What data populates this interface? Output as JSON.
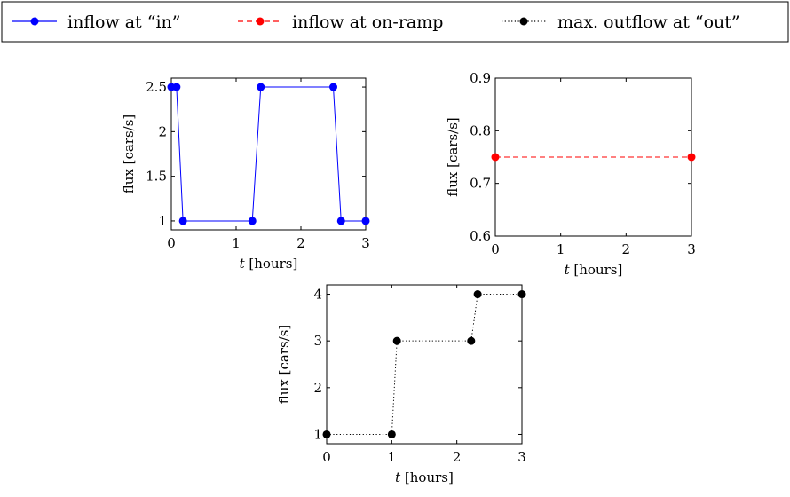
{
  "legend": {
    "placement": "top",
    "entries": [
      {
        "label": "inflow at “in”",
        "color": "#0000ff",
        "dash": "solid"
      },
      {
        "label": "inflow at on-ramp",
        "color": "#ff0000",
        "dash": "dashed"
      },
      {
        "label": "max. outflow at “out”",
        "color": "#000000",
        "dash": "dotted"
      }
    ]
  },
  "chart_data": [
    {
      "type": "line",
      "xlabel_var": "t",
      "xlabel_unit": "[hours]",
      "ylabel": "flux [cars/s]",
      "xlim": [
        0,
        3
      ],
      "ylim": [
        0.9,
        2.6
      ],
      "xticks": [
        0,
        1,
        2,
        3
      ],
      "yticks": [
        1,
        1.5,
        2,
        2.5
      ],
      "ytick_labels": [
        "1",
        "1.5",
        "2",
        "2.5"
      ],
      "grid": false,
      "series": [
        {
          "name": "inflow at “in”",
          "color": "#0000ff",
          "dash": "solid",
          "x": [
            0,
            0.08,
            0.18,
            1.25,
            1.38,
            2.5,
            2.62,
            3.0
          ],
          "y": [
            2.5,
            2.5,
            1.0,
            1.0,
            2.5,
            2.5,
            1.0,
            1.0
          ]
        }
      ]
    },
    {
      "type": "line",
      "xlabel_var": "t",
      "xlabel_unit": "[hours]",
      "ylabel": "flux [cars/s]",
      "xlim": [
        0,
        3
      ],
      "ylim": [
        0.6,
        0.9
      ],
      "xticks": [
        0,
        1,
        2,
        3
      ],
      "yticks": [
        0.6,
        0.7,
        0.8,
        0.9
      ],
      "ytick_labels": [
        "0.6",
        "0.7",
        "0.8",
        "0.9"
      ],
      "grid": false,
      "series": [
        {
          "name": "inflow at on-ramp",
          "color": "#ff0000",
          "dash": "dashed",
          "x": [
            0,
            3
          ],
          "y": [
            0.75,
            0.75
          ]
        }
      ]
    },
    {
      "type": "line",
      "xlabel_var": "t",
      "xlabel_unit": "[hours]",
      "ylabel": "flux [cars/s]",
      "xlim": [
        0,
        3
      ],
      "ylim": [
        0.8,
        4.2
      ],
      "xticks": [
        0,
        1,
        2,
        3
      ],
      "yticks": [
        1,
        2,
        3,
        4
      ],
      "ytick_labels": [
        "1",
        "2",
        "3",
        "4"
      ],
      "grid": false,
      "series": [
        {
          "name": "max. outflow at “out”",
          "color": "#000000",
          "dash": "dotted",
          "x": [
            0,
            1.0,
            1.08,
            2.22,
            2.32,
            3.0
          ],
          "y": [
            1,
            1,
            3,
            3,
            4,
            4
          ]
        }
      ]
    }
  ]
}
